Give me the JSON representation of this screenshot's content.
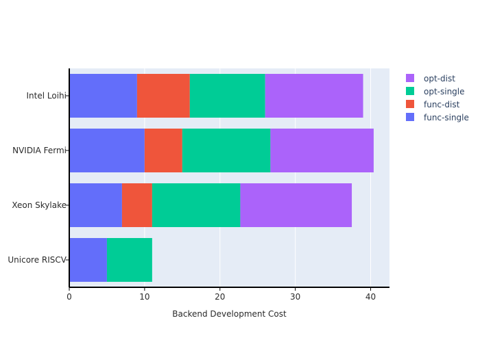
{
  "chart_data": {
    "type": "bar",
    "orientation": "horizontal",
    "barmode": "stack",
    "categories": [
      "Intel Loihi",
      "NVIDIA Fermi",
      "Xeon Skylake",
      "Unicore RISCV"
    ],
    "series": [
      {
        "name": "func-single",
        "color": "#636efa",
        "values": [
          9,
          10,
          7,
          5
        ]
      },
      {
        "name": "func-dist",
        "color": "#ef553b",
        "values": [
          7,
          5,
          4,
          0
        ]
      },
      {
        "name": "opt-single",
        "color": "#00cc96",
        "values": [
          10,
          11.7,
          11.7,
          6
        ]
      },
      {
        "name": "opt-dist",
        "color": "#ab63fa",
        "values": [
          13,
          13.7,
          14.8,
          0
        ]
      }
    ],
    "legend_order": [
      "opt-dist",
      "opt-single",
      "func-dist",
      "func-single"
    ],
    "xlabel": "Backend Development Cost",
    "ylabel": "",
    "title": "",
    "xlim": [
      0,
      42.5
    ],
    "xticks": [
      0,
      10,
      20,
      30,
      40
    ],
    "grid": true,
    "legend_position": "top-right",
    "plot_background": "#e5ecf6"
  }
}
